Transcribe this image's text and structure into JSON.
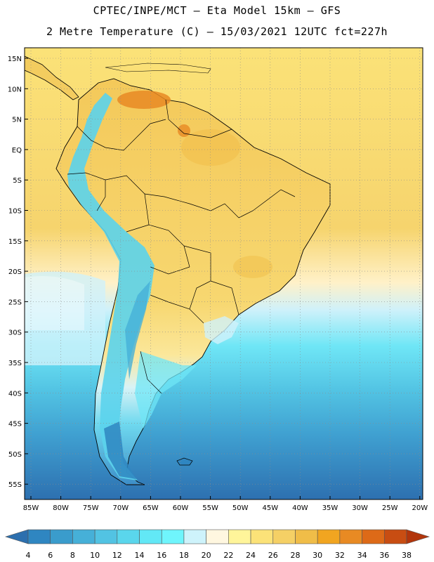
{
  "header": {
    "title_line1": "CPTEC/INPE/MCT –  Eta Model 15km – GFS",
    "title_line2": "2 Metre Temperature (C) – 15/03/2021 12UTC fct=227h"
  },
  "axes": {
    "lat_labels": [
      "15N",
      "10N",
      "5N",
      "EQ",
      "5S",
      "10S",
      "15S",
      "20S",
      "25S",
      "30S",
      "35S",
      "40S",
      "45S",
      "50S",
      "55S"
    ],
    "lon_labels": [
      "85W",
      "80W",
      "75W",
      "70W",
      "65W",
      "60W",
      "55W",
      "50W",
      "45W",
      "40W",
      "35W",
      "30W",
      "25W",
      "20W"
    ]
  },
  "colorbar": {
    "ticks": [
      "4",
      "6",
      "8",
      "10",
      "12",
      "14",
      "16",
      "18",
      "20",
      "22",
      "24",
      "26",
      "28",
      "30",
      "32",
      "34",
      "36",
      "38"
    ],
    "colors": [
      "#2c6fae",
      "#2f86c1",
      "#3a9ccc",
      "#46b0d8",
      "#52c3e3",
      "#5ad6ec",
      "#62e8f6",
      "#6ff5fc",
      "#cef3fb",
      "#fff7e0",
      "#fff59a",
      "#fbe278",
      "#f5d065",
      "#f0bd48",
      "#f1a520",
      "#e88a23",
      "#dd6a18",
      "#c84d12",
      "#b2350b"
    ]
  },
  "land_colors": {
    "coast_andes_cool": "#5bd3ec",
    "land_warm": "#f3cc5f",
    "hot_spot": "#e88a23"
  }
}
